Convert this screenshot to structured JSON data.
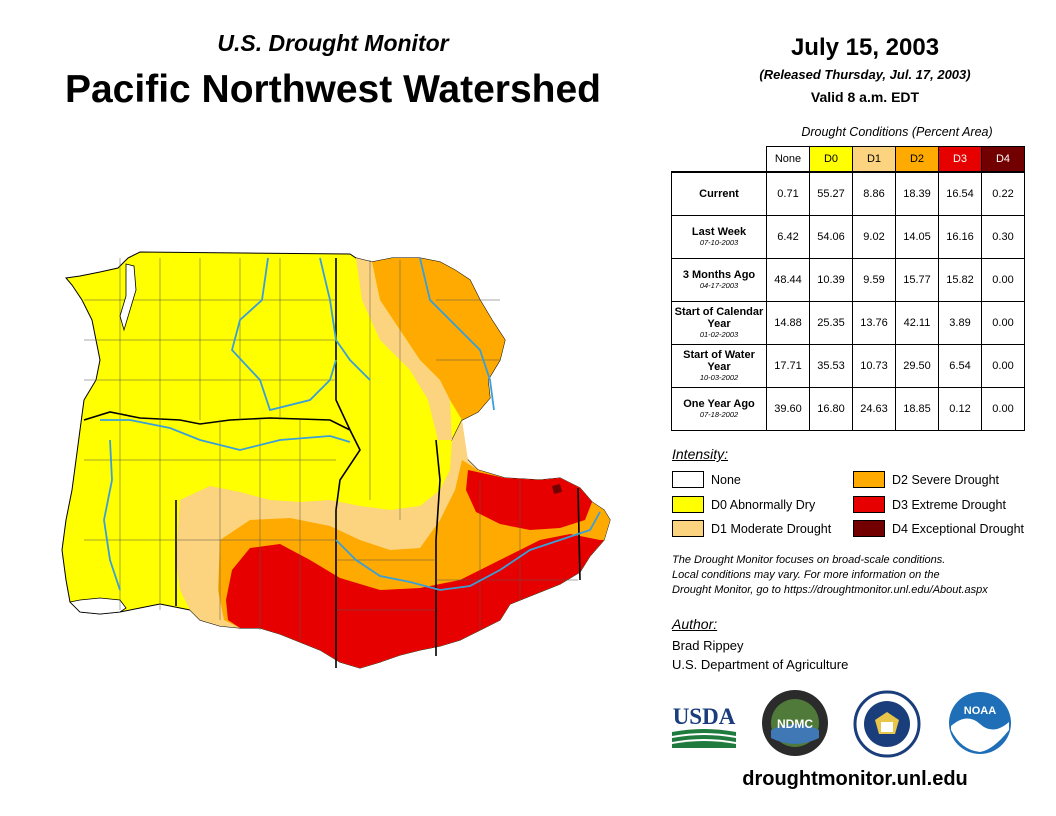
{
  "header": {
    "subtitle": "U.S. Drought Monitor",
    "title": "Pacific Northwest Watershed",
    "date": "July 15, 2003",
    "released": "(Released Thursday, Jul. 17, 2003)",
    "valid": "Valid 8 a.m. EDT"
  },
  "table": {
    "caption": "Drought Conditions (Percent Area)",
    "columns": [
      "None",
      "D0",
      "D1",
      "D2",
      "D3",
      "D4"
    ],
    "column_colors": [
      "#ffffff",
      "#ffff00",
      "#fcd37f",
      "#ffaa00",
      "#e60000",
      "#730000"
    ],
    "rows": [
      {
        "label": "Current",
        "sublabel": "",
        "values": [
          "0.71",
          "55.27",
          "8.86",
          "18.39",
          "16.54",
          "0.22"
        ]
      },
      {
        "label": "Last Week",
        "sublabel": "07-10-2003",
        "values": [
          "6.42",
          "54.06",
          "9.02",
          "14.05",
          "16.16",
          "0.30"
        ]
      },
      {
        "label": "3 Months Ago",
        "sublabel": "04-17-2003",
        "values": [
          "48.44",
          "10.39",
          "9.59",
          "15.77",
          "15.82",
          "0.00"
        ]
      },
      {
        "label": "Start of Calendar Year",
        "sublabel": "01-02-2003",
        "values": [
          "14.88",
          "25.35",
          "13.76",
          "42.11",
          "3.89",
          "0.00"
        ]
      },
      {
        "label": "Start of Water Year",
        "sublabel": "10-03-2002",
        "values": [
          "17.71",
          "35.53",
          "10.73",
          "29.50",
          "6.54",
          "0.00"
        ]
      },
      {
        "label": "One Year Ago",
        "sublabel": "07-18-2002",
        "values": [
          "39.60",
          "16.80",
          "24.63",
          "18.85",
          "0.12",
          "0.00"
        ]
      }
    ]
  },
  "legend": {
    "title": "Intensity:",
    "items": [
      {
        "label": "None",
        "color": "#ffffff"
      },
      {
        "label": "D0 Abnormally Dry",
        "color": "#ffff00"
      },
      {
        "label": "D1 Moderate Drought",
        "color": "#fcd37f"
      },
      {
        "label": "D2 Severe Drought",
        "color": "#ffaa00"
      },
      {
        "label": "D3 Extreme Drought",
        "color": "#e60000"
      },
      {
        "label": "D4 Exceptional Drought",
        "color": "#730000"
      }
    ]
  },
  "note": {
    "line1": "The Drought Monitor focuses on broad-scale conditions.",
    "line2": "Local conditions may vary. For more information on the",
    "line3": "Drought Monitor, go to https://droughtmonitor.unl.edu/About.aspx"
  },
  "author": {
    "title": "Author:",
    "name": "Brad Rippey",
    "org": "U.S. Department of Agriculture"
  },
  "logos": {
    "usda": "USDA",
    "ndmc": "NDMC",
    "noaa": "NOAA"
  },
  "website": "droughtmonitor.unl.edu",
  "colors": {
    "river": "#3a9fd8",
    "county_line": "#555555"
  }
}
